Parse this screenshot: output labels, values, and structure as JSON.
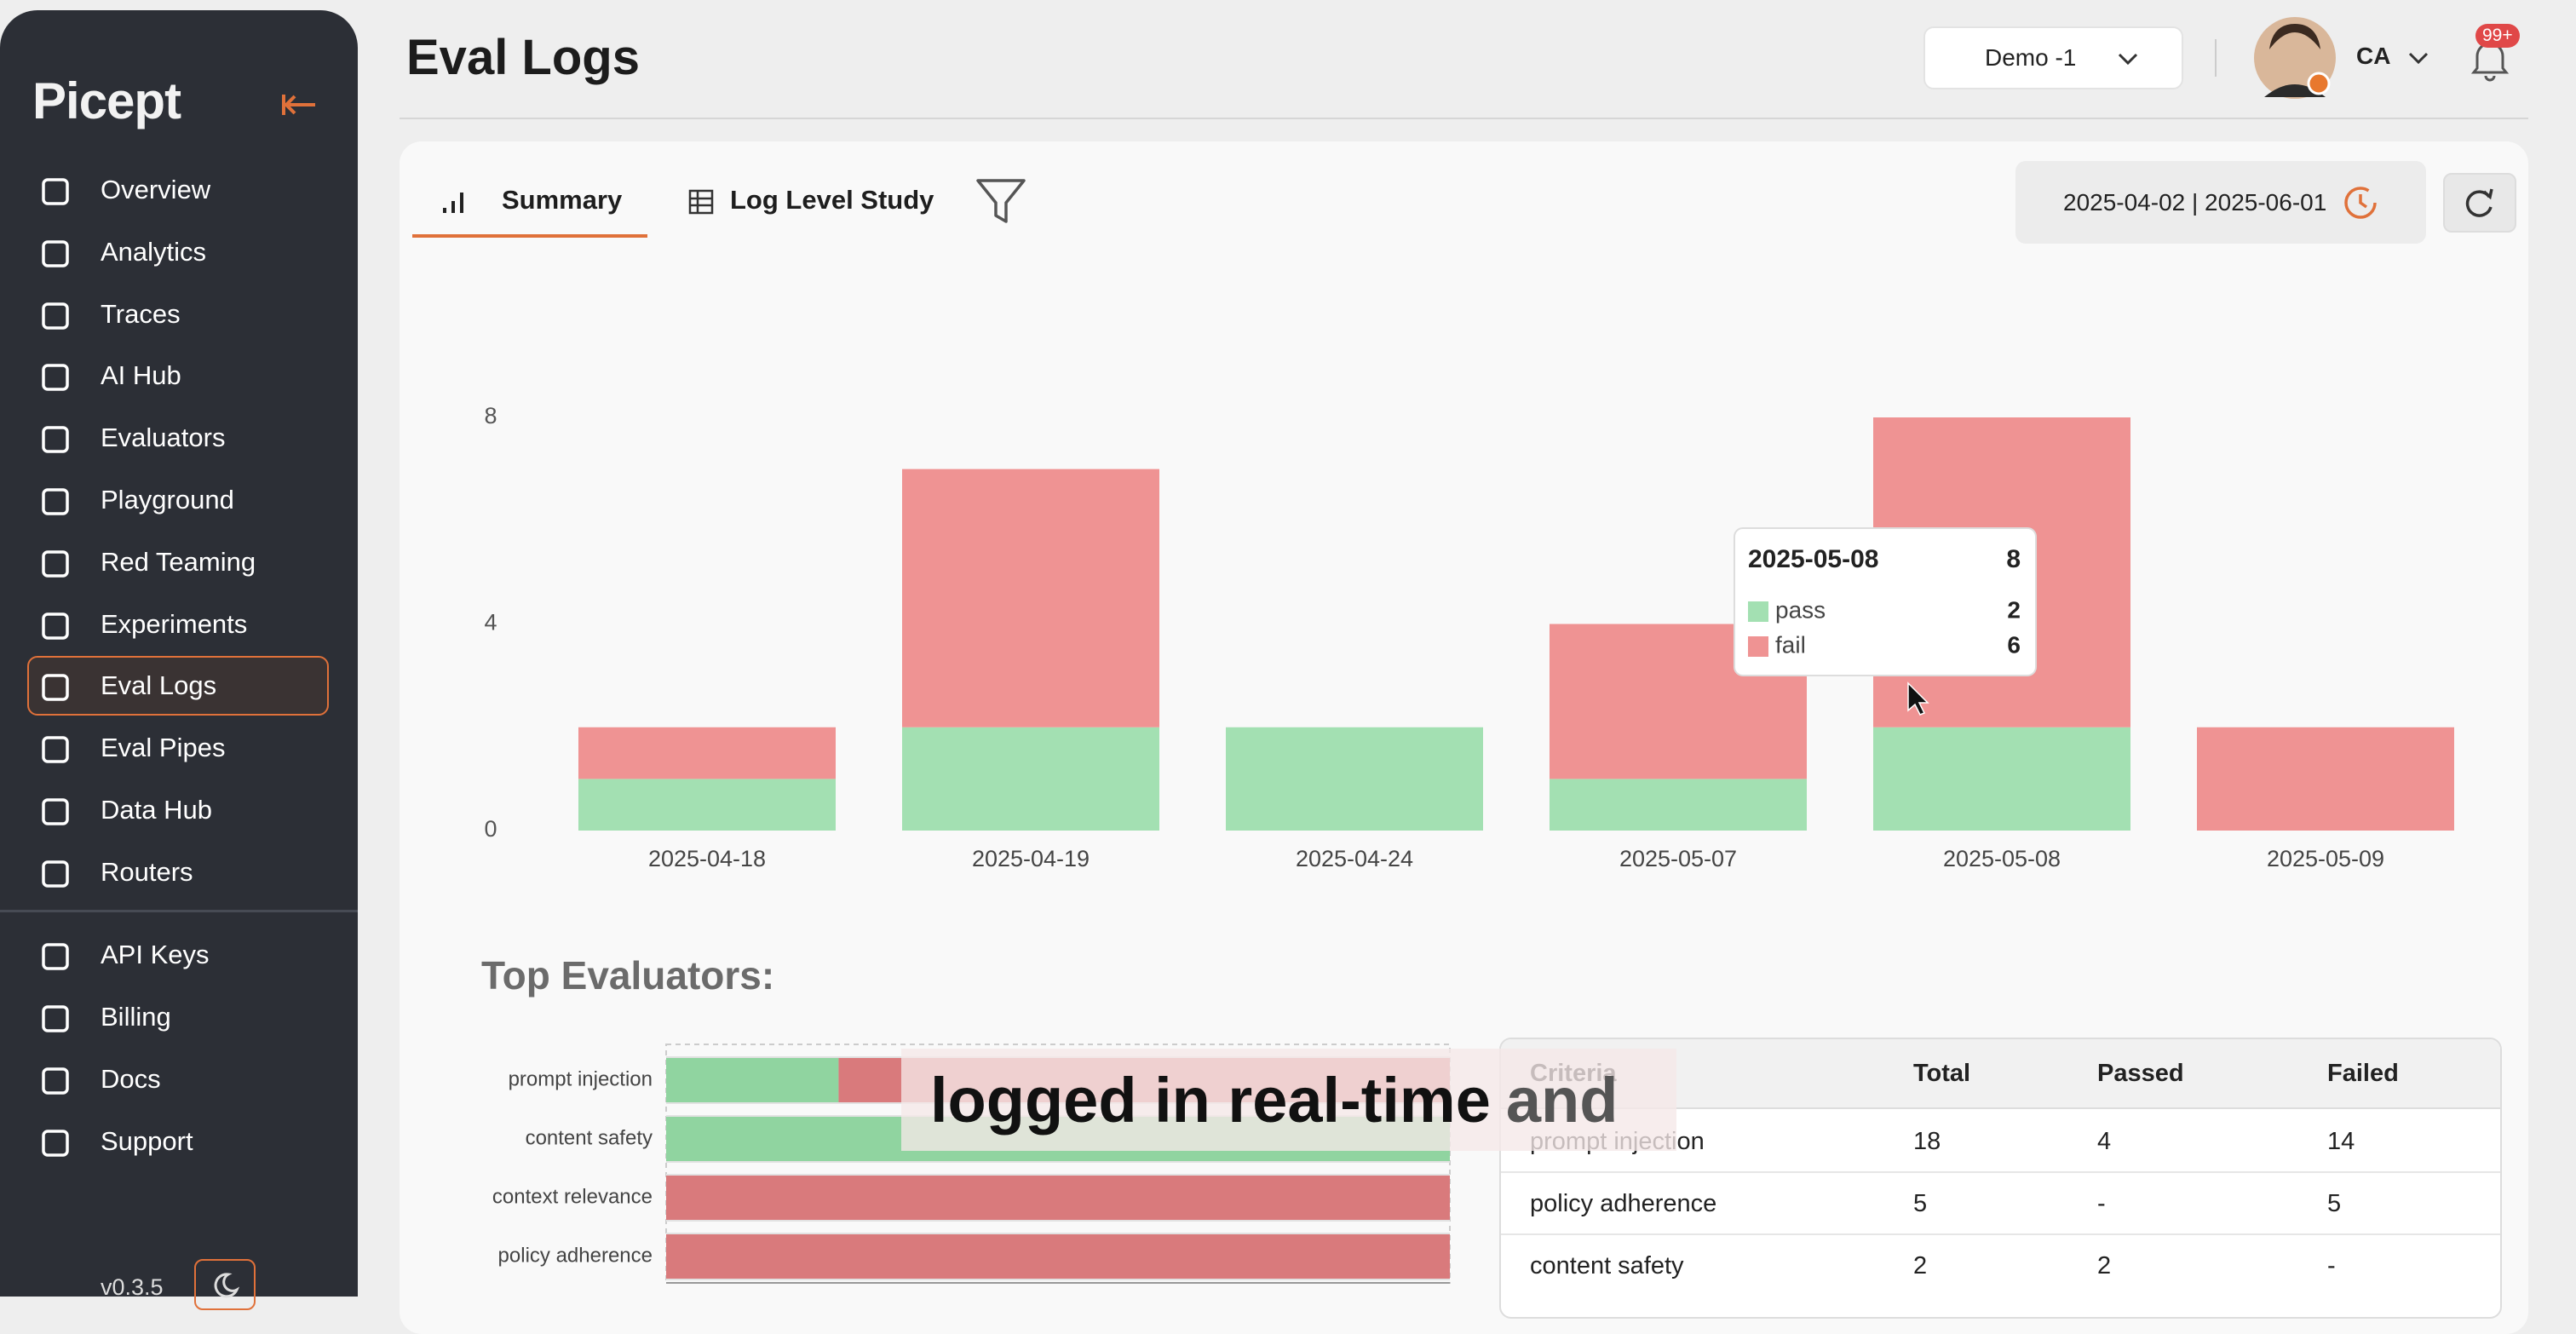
{
  "sidebar": {
    "logo": "Picept",
    "nav": [
      "Overview",
      "Analytics",
      "Traces",
      "AI Hub",
      "Evaluators",
      "Playground",
      "Red Teaming",
      "Experiments",
      "Eval Logs",
      "Eval Pipes",
      "Data Hub",
      "Routers"
    ],
    "active": 8,
    "nav_bottom": [
      "API Keys",
      "Billing",
      "Docs",
      "Support"
    ],
    "version": "v0.3.5"
  },
  "header": {
    "title": "Eval Logs",
    "workspace": "Demo -1",
    "user": "CA",
    "notifications": "99+"
  },
  "tabs": [
    "Summary",
    "Log Level Study"
  ],
  "date_range": "2025-04-02 | 2025-06-01",
  "chart_data": [
    {
      "type": "stacked-bar",
      "categories": [
        "2025-04-18",
        "2025-04-19",
        "2025-04-24",
        "2025-05-07",
        "2025-05-08",
        "2025-05-09"
      ],
      "series": [
        {
          "name": "pass",
          "color": "#a3e0b2",
          "values": [
            1,
            2,
            2,
            1,
            2,
            0
          ]
        },
        {
          "name": "fail",
          "color": "#ef9393",
          "values": [
            1,
            5,
            0,
            3,
            6,
            2
          ]
        }
      ],
      "ylim": [
        0,
        8
      ],
      "yticks": [
        0,
        4,
        8
      ],
      "grid": false,
      "tooltip": {
        "index": 4,
        "total": 8
      }
    },
    {
      "type": "horizontal-stacked-bar",
      "categories": [
        "prompt injection",
        "content safety",
        "context relevance",
        "policy adherence"
      ],
      "series": [
        {
          "name": "pass",
          "color": "#90d4a0",
          "values": [
            22,
            100,
            0,
            0
          ]
        },
        {
          "name": "fail",
          "color": "#d97a7c",
          "values": [
            78,
            0,
            100,
            100
          ]
        }
      ],
      "xlim": [
        0,
        100
      ]
    }
  ],
  "section_title": "Top Evaluators:",
  "table": {
    "headers": [
      "Criteria",
      "Total",
      "Passed",
      "Failed"
    ],
    "rows": [
      [
        "prompt injection",
        18,
        4,
        14
      ],
      [
        "policy adherence",
        5,
        "-",
        5
      ],
      [
        "content safety",
        2,
        2,
        "-"
      ]
    ]
  },
  "caption": [
    "logged in real-time",
    "and"
  ]
}
